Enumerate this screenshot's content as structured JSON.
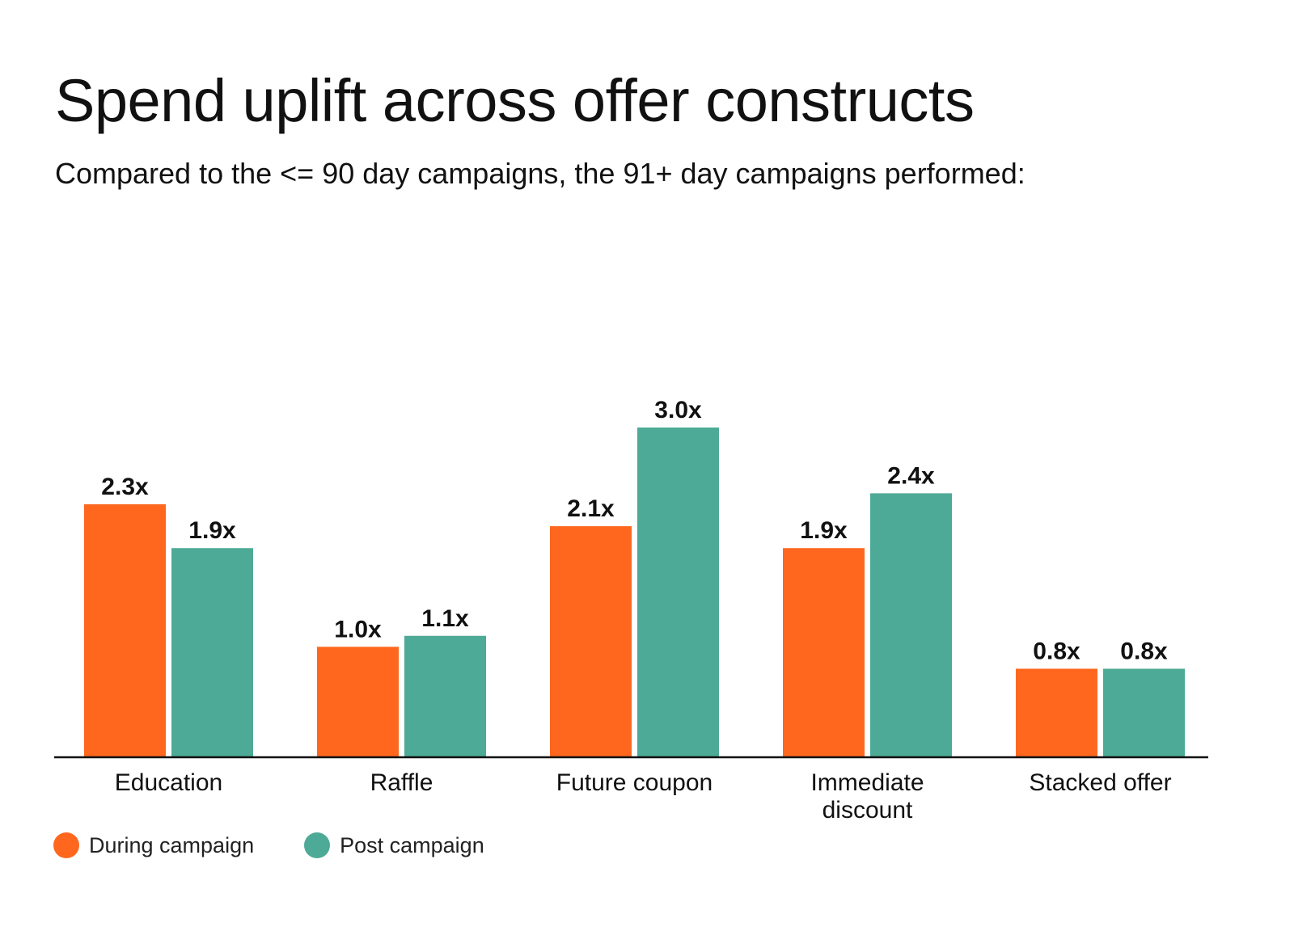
{
  "chart_data": {
    "type": "bar",
    "title": "Spend uplift across offer constructs",
    "subtitle": "Compared to the <= 90 day campaigns, the 91+ day campaigns performed:",
    "categories": [
      [
        "Education"
      ],
      [
        "Raffle"
      ],
      [
        "Future coupon"
      ],
      [
        "Immediate",
        "discount"
      ],
      [
        "Stacked offer"
      ]
    ],
    "series": [
      {
        "name": "During campaign",
        "color": "#FF671F",
        "values": [
          2.3,
          1.0,
          2.1,
          1.9,
          0.8
        ],
        "labels": [
          "2.3x",
          "1.0x",
          "2.1x",
          "1.9x",
          "0.8x"
        ]
      },
      {
        "name": "Post campaign",
        "color": "#4DAA96",
        "values": [
          1.9,
          1.1,
          3.0,
          2.4,
          0.8
        ],
        "labels": [
          "1.9x",
          "1.1x",
          "3.0x",
          "2.4x",
          "0.8x"
        ]
      }
    ],
    "ylim": [
      0,
      3.0
    ],
    "xlabel": "",
    "ylabel": "",
    "grid": false,
    "legend": "bottom-left",
    "axis_color": "#111111"
  }
}
